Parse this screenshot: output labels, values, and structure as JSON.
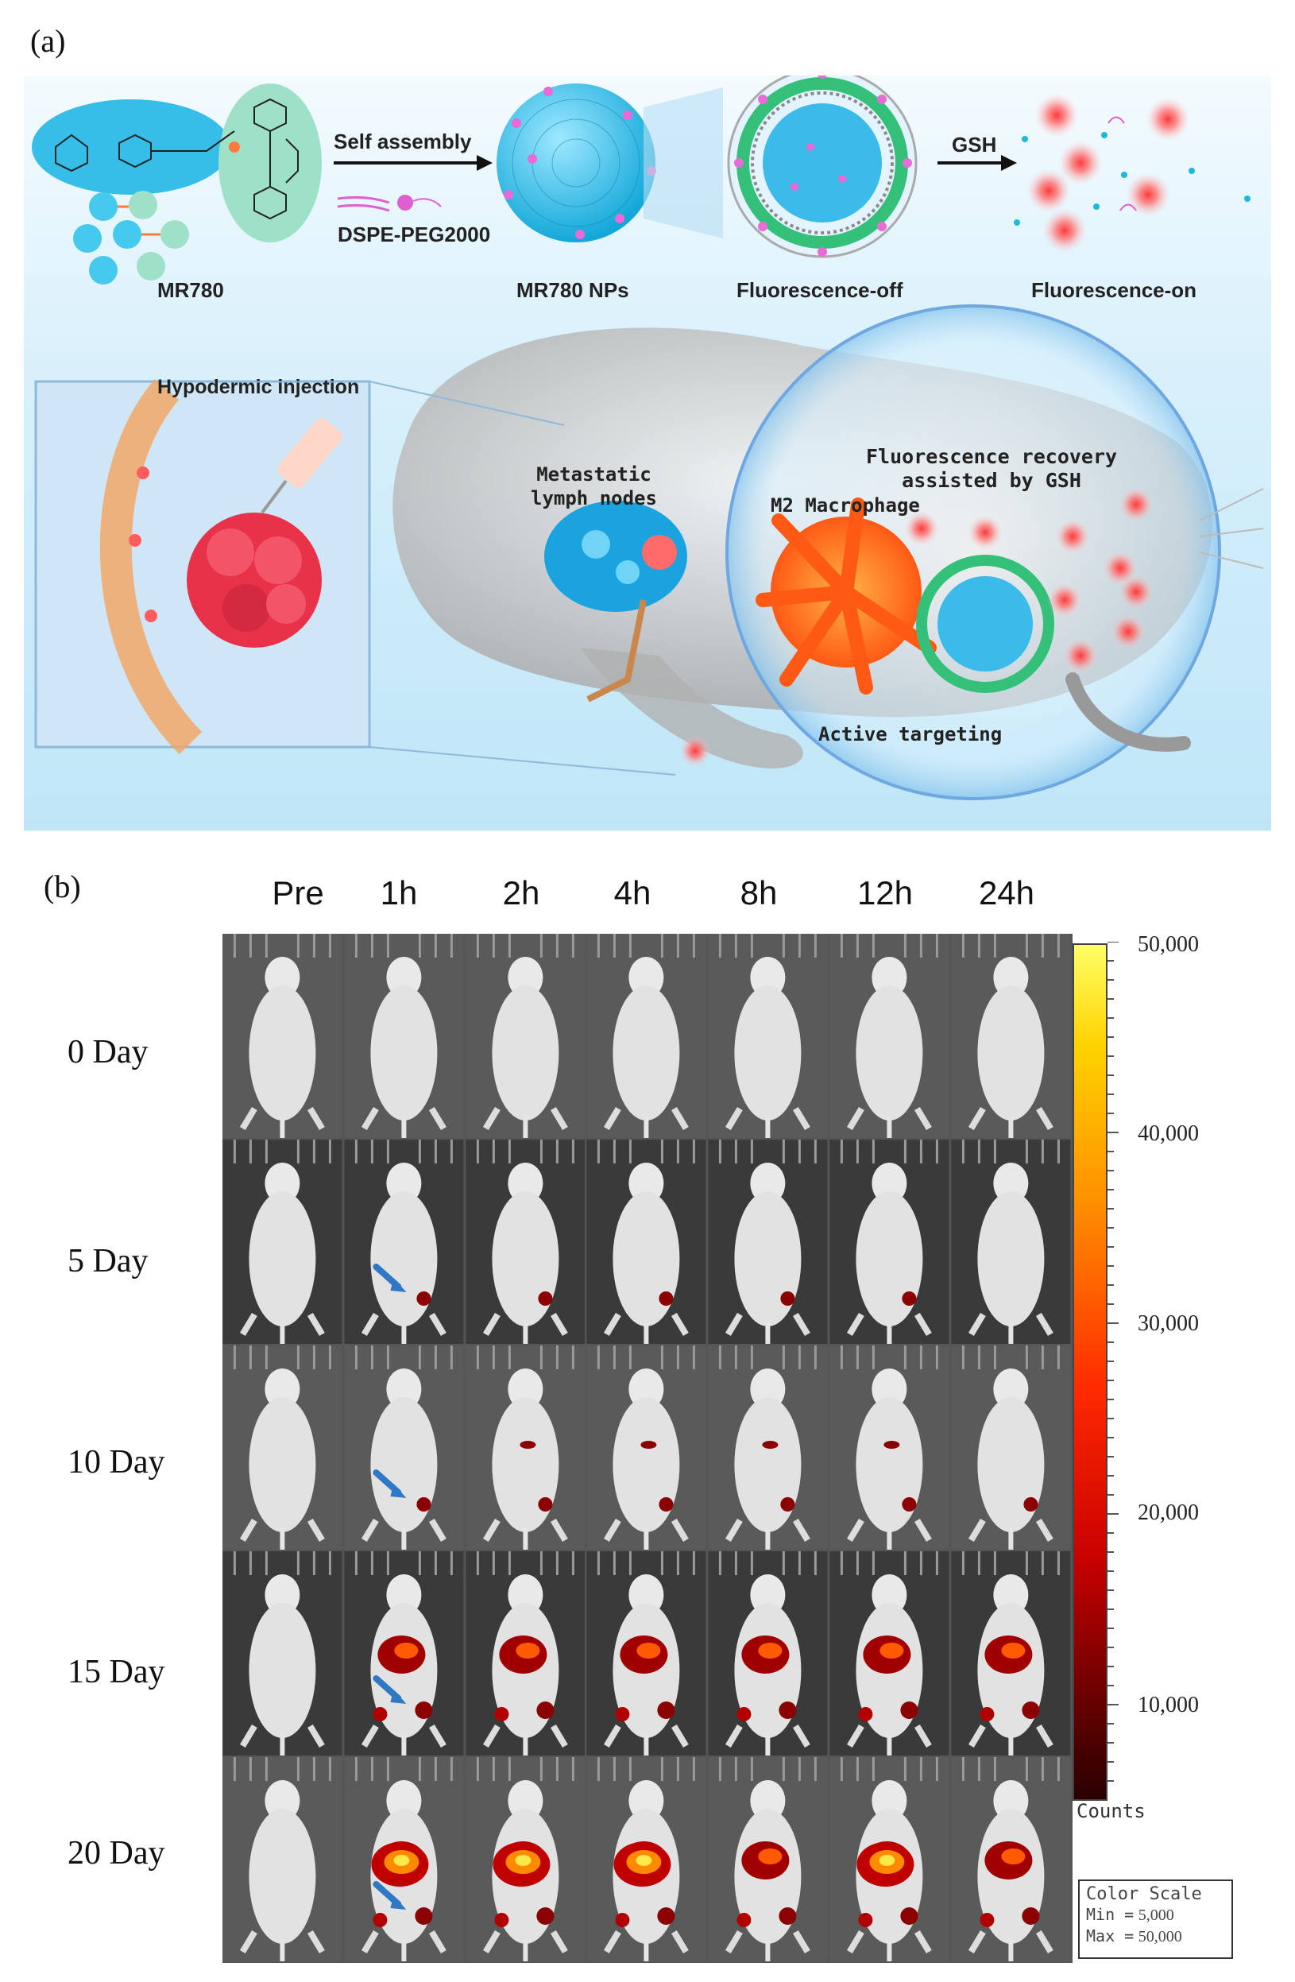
{
  "panel_a": {
    "label": "(a)",
    "mr780_label": "MR780",
    "self_assembly": "Self assembly",
    "dspe_peg": "DSPE-PEG2000",
    "np_label": "MR780 NPs",
    "fluor_off": "Fluorescence-off",
    "gsh": "GSH",
    "fluor_on": "Fluorescence-on",
    "hypodermic": "Hypodermic injection",
    "metastatic_line1": "Metastatic",
    "metastatic_line2": "lymph nodes",
    "m2": "M2 Macrophage",
    "recovery_line1": "Fluorescence recovery",
    "recovery_line2": "assisted by GSH",
    "active_targeting": "Active targeting"
  },
  "panel_b": {
    "label": "(b)",
    "time_points": [
      "Pre",
      "1h",
      "2h",
      "4h",
      "8h",
      "12h",
      "24h"
    ],
    "days": [
      "0 Day",
      "5 Day",
      "10 Day",
      "15 Day",
      "20 Day"
    ],
    "scale_ticks": [
      "50,000",
      "40,000",
      "30,000",
      "20,000",
      "10,000"
    ],
    "counts_label": "Counts",
    "color_scale_box": {
      "title": "Color Scale",
      "min_label": "Min =",
      "min_value": "5,000",
      "max_label": "Max =",
      "max_value": "50,000"
    }
  },
  "colors": {
    "background_a": "#d8f0fb",
    "nanoparticle": "#2ec4f0",
    "fluorescence_red": "#ff4b4b",
    "arrow_blue": "#2f78c4"
  }
}
